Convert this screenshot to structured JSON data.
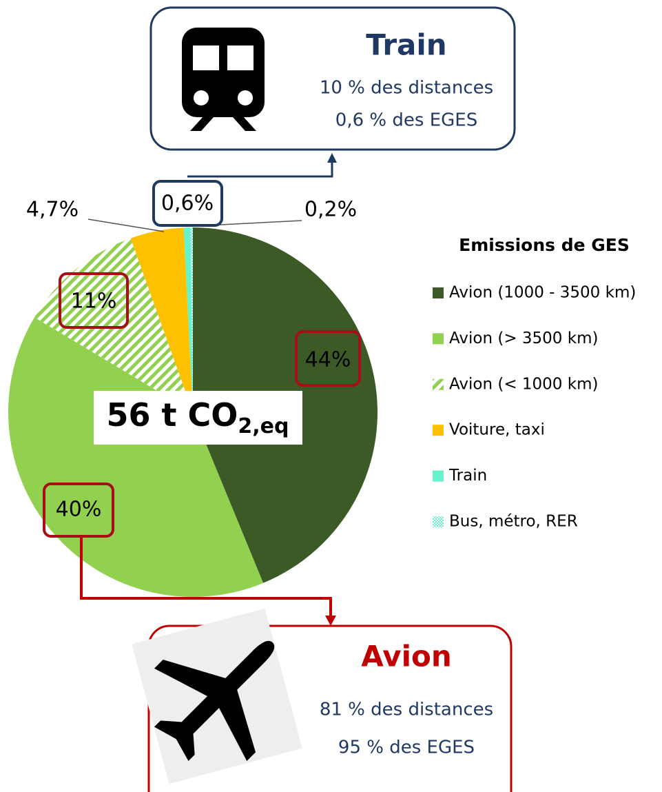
{
  "chart_data": {
    "type": "pie",
    "categories": [
      "Avion (1000 - 3500 km)",
      "Avion (> 3500 km)",
      "Avion (< 1000 km)",
      "Voiture, taxi",
      "Train",
      "Bus, métro, RER"
    ],
    "values": [
      44,
      40,
      11,
      4.7,
      0.6,
      0.2
    ],
    "value_labels": [
      "44%",
      "40%",
      "11%",
      "4,7%",
      "0,6%",
      "0,2%"
    ],
    "colors": [
      "#3c5a26",
      "#92d050",
      "#92d050",
      "#ffc000",
      "#66f2cc",
      "#66f2cc"
    ],
    "fills": [
      "solid",
      "solid",
      "hatch",
      "solid",
      "solid",
      "dots"
    ],
    "legend_title": "Emissions de GES",
    "center_label": [
      "56 t CO",
      "2,eq"
    ],
    "callouts": [
      {
        "title": "Train",
        "lines": [
          "10 % des distances",
          "0,6 % des EGES"
        ]
      },
      {
        "title": "Avion",
        "lines": [
          "81 % des distances",
          "95 % des EGES"
        ]
      }
    ]
  }
}
